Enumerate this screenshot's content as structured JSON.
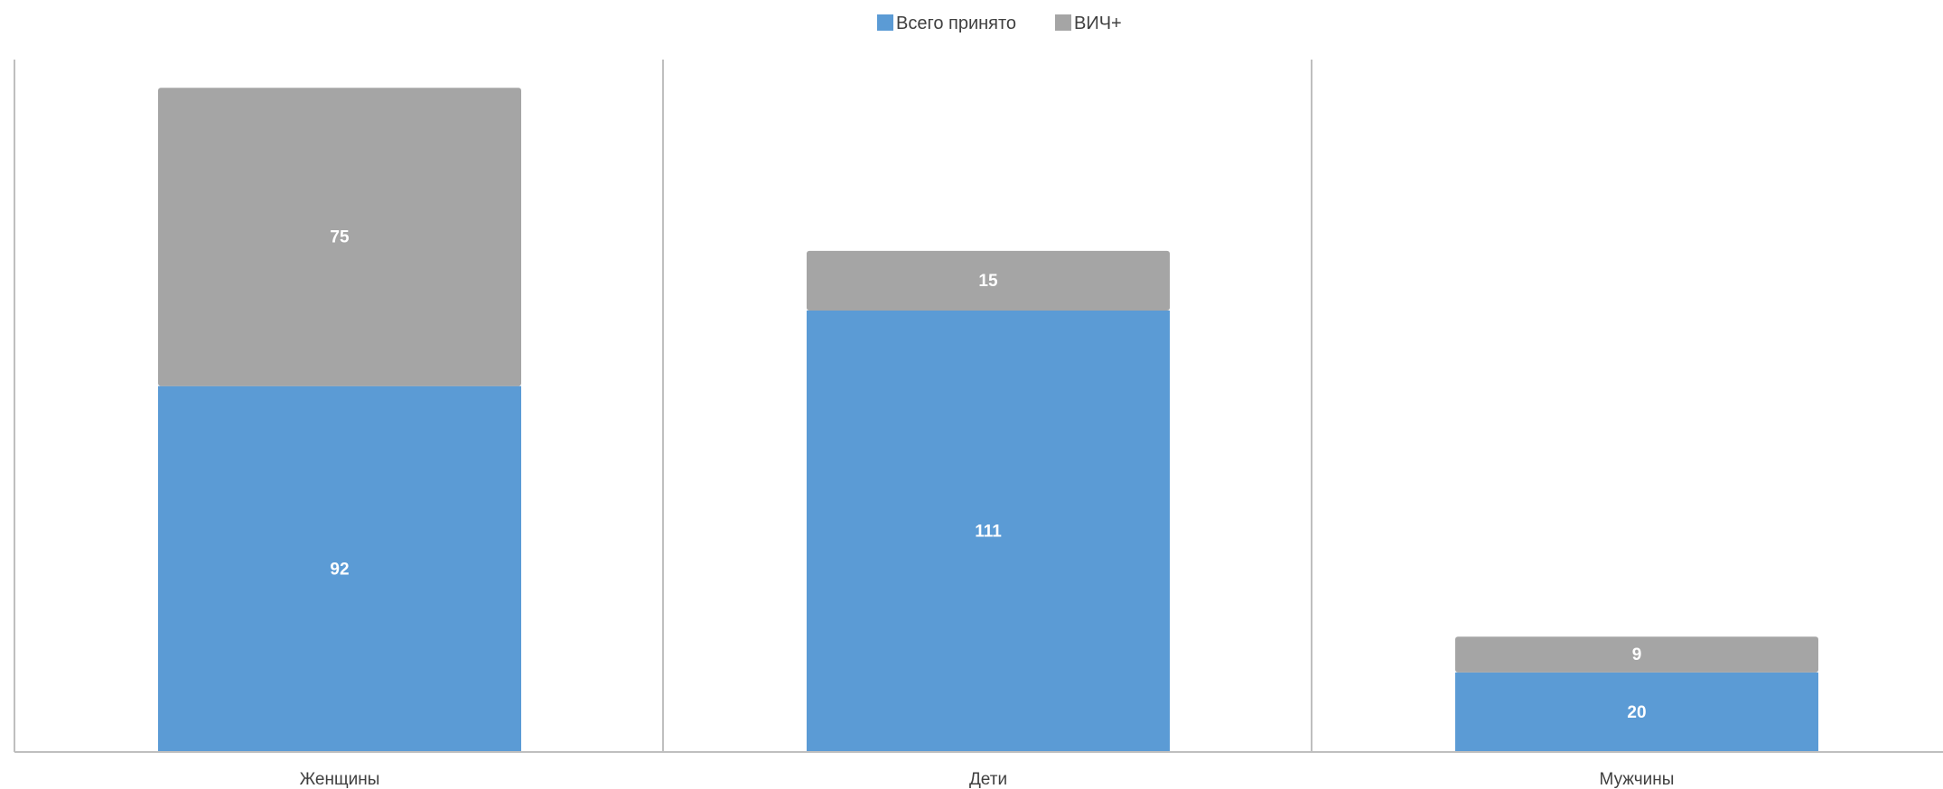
{
  "chart_data": {
    "type": "bar",
    "stacked": true,
    "categories": [
      "Женщины",
      "Дети",
      "Мужчины"
    ],
    "series": [
      {
        "name": "Всего принято",
        "color": "#5b9bd5",
        "values": [
          92,
          111,
          20
        ]
      },
      {
        "name": "ВИЧ+",
        "color": "#a5a5a5",
        "values": [
          75,
          15,
          9
        ]
      }
    ],
    "title": "",
    "xlabel": "",
    "ylabel": "",
    "ylim": [
      0,
      180
    ],
    "legend": "top-center",
    "grid": false,
    "category_separators": true
  }
}
